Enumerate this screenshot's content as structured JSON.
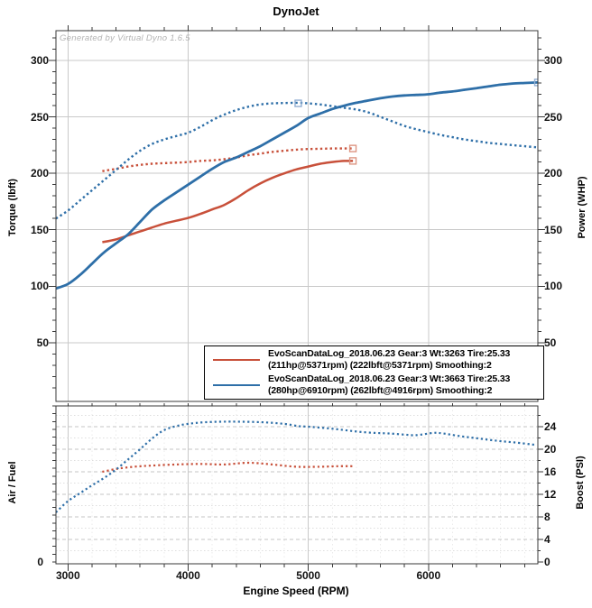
{
  "title": "DynoJet",
  "watermark": "Generated by Virtual Dyno 1.6.5",
  "colors": {
    "run1": "#c8503a",
    "run2": "#2e6fa8",
    "run1_marker": "#dd9683",
    "run2_marker": "#93afd2",
    "grid_major": "#c9c9c9",
    "grid_mid": "#c4c4c4",
    "grid_minor": "#dedede",
    "grid_faint": "#ebebeb",
    "axis": "#3a3a3a",
    "background": "#ffffff"
  },
  "legend": {
    "entries": [
      {
        "color_key": "run1",
        "line1": "EvoScanDataLog_2018.06.23 Gear:3 Wt:3263 Tire:25.33",
        "line2": "(211hp@5371rpm) (222lbft@5371rpm) Smoothing:2"
      },
      {
        "color_key": "run2",
        "line1": "EvoScanDataLog_2018.06.23 Gear:3 Wt:3663 Tire:25.33",
        "line2": "(280hp@6910rpm) (262lbft@4916rpm) Smoothing:2"
      }
    ]
  },
  "chart_data": [
    {
      "type": "line",
      "title": "DynoJet",
      "xlabel": "Engine Speed (RPM)",
      "ylabel_left": "Torque (lbft)",
      "ylabel_right": "Power (WHP)",
      "xlim": [
        2900,
        6910
      ],
      "ylim": [
        0,
        326
      ],
      "xticks": [
        3000,
        4000,
        5000,
        6000
      ],
      "yticks": [
        50,
        100,
        150,
        200,
        250,
        300
      ],
      "x_minor_step": 200,
      "y_minor_step": 10,
      "grid": true,
      "legend_position": "bottom-right",
      "series": [
        {
          "name": "Run 1 Power (WHP)",
          "style": "solid",
          "color_key": "run1",
          "points": [
            [
              3286,
              139
            ],
            [
              3400,
              141.5
            ],
            [
              3500,
              145
            ],
            [
              3600,
              148.5
            ],
            [
              3700,
              152
            ],
            [
              3800,
              155.5
            ],
            [
              3900,
              158
            ],
            [
              4000,
              160.5
            ],
            [
              4100,
              164
            ],
            [
              4200,
              168
            ],
            [
              4300,
              172
            ],
            [
              4400,
              178
            ],
            [
              4500,
              185
            ],
            [
              4600,
              191
            ],
            [
              4700,
              196
            ],
            [
              4800,
              200
            ],
            [
              4900,
              203.5
            ],
            [
              5000,
              206
            ],
            [
              5100,
              208.5
            ],
            [
              5200,
              210
            ],
            [
              5300,
              211
            ],
            [
              5371,
              211
            ]
          ]
        },
        {
          "name": "Run 1 Torque (lbft)",
          "style": "dotted",
          "color_key": "run1",
          "points": [
            [
              3286,
              202
            ],
            [
              3400,
              204
            ],
            [
              3500,
              206
            ],
            [
              3600,
              207.5
            ],
            [
              3700,
              208.5
            ],
            [
              3800,
              209
            ],
            [
              3900,
              209.5
            ],
            [
              4000,
              210
            ],
            [
              4100,
              211
            ],
            [
              4200,
              211.5
            ],
            [
              4300,
              212.5
            ],
            [
              4400,
              214
            ],
            [
              4500,
              216
            ],
            [
              4600,
              217.5
            ],
            [
              4700,
              219
            ],
            [
              4800,
              220
            ],
            [
              4900,
              221
            ],
            [
              5000,
              221.5
            ],
            [
              5100,
              221.8
            ],
            [
              5200,
              222
            ],
            [
              5300,
              222
            ],
            [
              5371,
              222
            ]
          ]
        },
        {
          "name": "Run 2 Power (WHP)",
          "style": "solid",
          "color_key": "run2",
          "points": [
            [
              2900,
              98
            ],
            [
              3000,
              102
            ],
            [
              3100,
              110
            ],
            [
              3200,
              120
            ],
            [
              3300,
              130
            ],
            [
              3400,
              138
            ],
            [
              3500,
              146
            ],
            [
              3600,
              157
            ],
            [
              3700,
              168
            ],
            [
              3800,
              176
            ],
            [
              3900,
              183
            ],
            [
              4000,
              190
            ],
            [
              4100,
              197
            ],
            [
              4200,
              204
            ],
            [
              4300,
              210
            ],
            [
              4400,
              214
            ],
            [
              4500,
              219
            ],
            [
              4600,
              224
            ],
            [
              4700,
              230
            ],
            [
              4800,
              236
            ],
            [
              4900,
              242
            ],
            [
              5000,
              249
            ],
            [
              5100,
              253
            ],
            [
              5200,
              257
            ],
            [
              5300,
              260
            ],
            [
              5400,
              262.5
            ],
            [
              5500,
              264.5
            ],
            [
              5600,
              266.5
            ],
            [
              5700,
              268
            ],
            [
              5800,
              269
            ],
            [
              5900,
              269.5
            ],
            [
              6000,
              270
            ],
            [
              6100,
              271.5
            ],
            [
              6200,
              272.5
            ],
            [
              6300,
              274
            ],
            [
              6400,
              275.5
            ],
            [
              6500,
              277
            ],
            [
              6600,
              278.5
            ],
            [
              6700,
              279.5
            ],
            [
              6800,
              280
            ],
            [
              6910,
              280.5
            ]
          ]
        },
        {
          "name": "Run 2 Torque (lbft)",
          "style": "dotted",
          "color_key": "run2",
          "points": [
            [
              2900,
              160
            ],
            [
              3000,
              167
            ],
            [
              3100,
              176
            ],
            [
              3200,
              185
            ],
            [
              3300,
              194
            ],
            [
              3400,
              203
            ],
            [
              3500,
              212
            ],
            [
              3600,
              220
            ],
            [
              3700,
              226
            ],
            [
              3800,
              230
            ],
            [
              3900,
              233
            ],
            [
              4000,
              236
            ],
            [
              4100,
              241
            ],
            [
              4200,
              247
            ],
            [
              4300,
              252
            ],
            [
              4400,
              256
            ],
            [
              4500,
              259
            ],
            [
              4600,
              261
            ],
            [
              4700,
              262
            ],
            [
              4800,
              262.3
            ],
            [
              4916,
              262.5
            ],
            [
              5000,
              262
            ],
            [
              5100,
              261
            ],
            [
              5200,
              259.5
            ],
            [
              5300,
              258
            ],
            [
              5400,
              256.5
            ],
            [
              5500,
              254
            ],
            [
              5600,
              250
            ],
            [
              5700,
              246
            ],
            [
              5800,
              242
            ],
            [
              5900,
              239
            ],
            [
              6000,
              236.5
            ],
            [
              6100,
              234
            ],
            [
              6200,
              232
            ],
            [
              6300,
              230
            ],
            [
              6400,
              228.5
            ],
            [
              6500,
              227
            ],
            [
              6600,
              226
            ],
            [
              6700,
              225
            ],
            [
              6800,
              224
            ],
            [
              6910,
              223
            ]
          ]
        }
      ],
      "peak_markers": [
        {
          "x": 5371,
          "y": 222,
          "color_key": "run1"
        },
        {
          "x": 5371,
          "y": 211,
          "color_key": "run1"
        },
        {
          "x": 4916,
          "y": 262,
          "color_key": "run2"
        },
        {
          "x": 6910,
          "y": 280.5,
          "color_key": "run2"
        }
      ]
    },
    {
      "type": "line",
      "ylabel_left": "Air / Fuel",
      "ylabel_right": "Boost (PSI)",
      "xlim": [
        2900,
        6910
      ],
      "ylim_right": [
        0,
        27.7
      ],
      "yticks_left": [
        0
      ],
      "yticks_right": [
        0,
        4,
        8,
        12,
        16,
        20,
        24
      ],
      "y_minor_step_right": 2,
      "grid": true,
      "series": [
        {
          "name": "Run 1 Boost (PSI)",
          "style": "dotted",
          "color_key": "run1",
          "points": [
            [
              3286,
              16
            ],
            [
              3400,
              16.5
            ],
            [
              3550,
              16.9
            ],
            [
              3700,
              17.1
            ],
            [
              3900,
              17.3
            ],
            [
              4100,
              17.4
            ],
            [
              4300,
              17.3
            ],
            [
              4500,
              17.6
            ],
            [
              4700,
              17.3
            ],
            [
              4900,
              16.9
            ],
            [
              5100,
              16.9
            ],
            [
              5250,
              17
            ],
            [
              5371,
              17
            ]
          ]
        },
        {
          "name": "Run 2 Boost (PSI)",
          "style": "dotted",
          "color_key": "run2",
          "points": [
            [
              2900,
              8.8
            ],
            [
              3000,
              10.8
            ],
            [
              3100,
              12.2
            ],
            [
              3200,
              13.6
            ],
            [
              3300,
              14.9
            ],
            [
              3400,
              16.4
            ],
            [
              3500,
              18.2
            ],
            [
              3600,
              20
            ],
            [
              3700,
              21.9
            ],
            [
              3800,
              23.4
            ],
            [
              3900,
              24.1
            ],
            [
              4000,
              24.5
            ],
            [
              4150,
              24.8
            ],
            [
              4350,
              24.9
            ],
            [
              4600,
              24.8
            ],
            [
              4800,
              24.5
            ],
            [
              4920,
              24.1
            ],
            [
              5000,
              24
            ],
            [
              5170,
              23.7
            ],
            [
              5300,
              23.4
            ],
            [
              5420,
              23.1
            ],
            [
              5550,
              22.9
            ],
            [
              5670,
              22.8
            ],
            [
              5800,
              22.6
            ],
            [
              5900,
              22.5
            ],
            [
              6040,
              22.9
            ],
            [
              6120,
              22.8
            ],
            [
              6270,
              22.3
            ],
            [
              6420,
              21.9
            ],
            [
              6570,
              21.5
            ],
            [
              6720,
              21.2
            ],
            [
              6880,
              20.8
            ]
          ]
        }
      ]
    }
  ]
}
